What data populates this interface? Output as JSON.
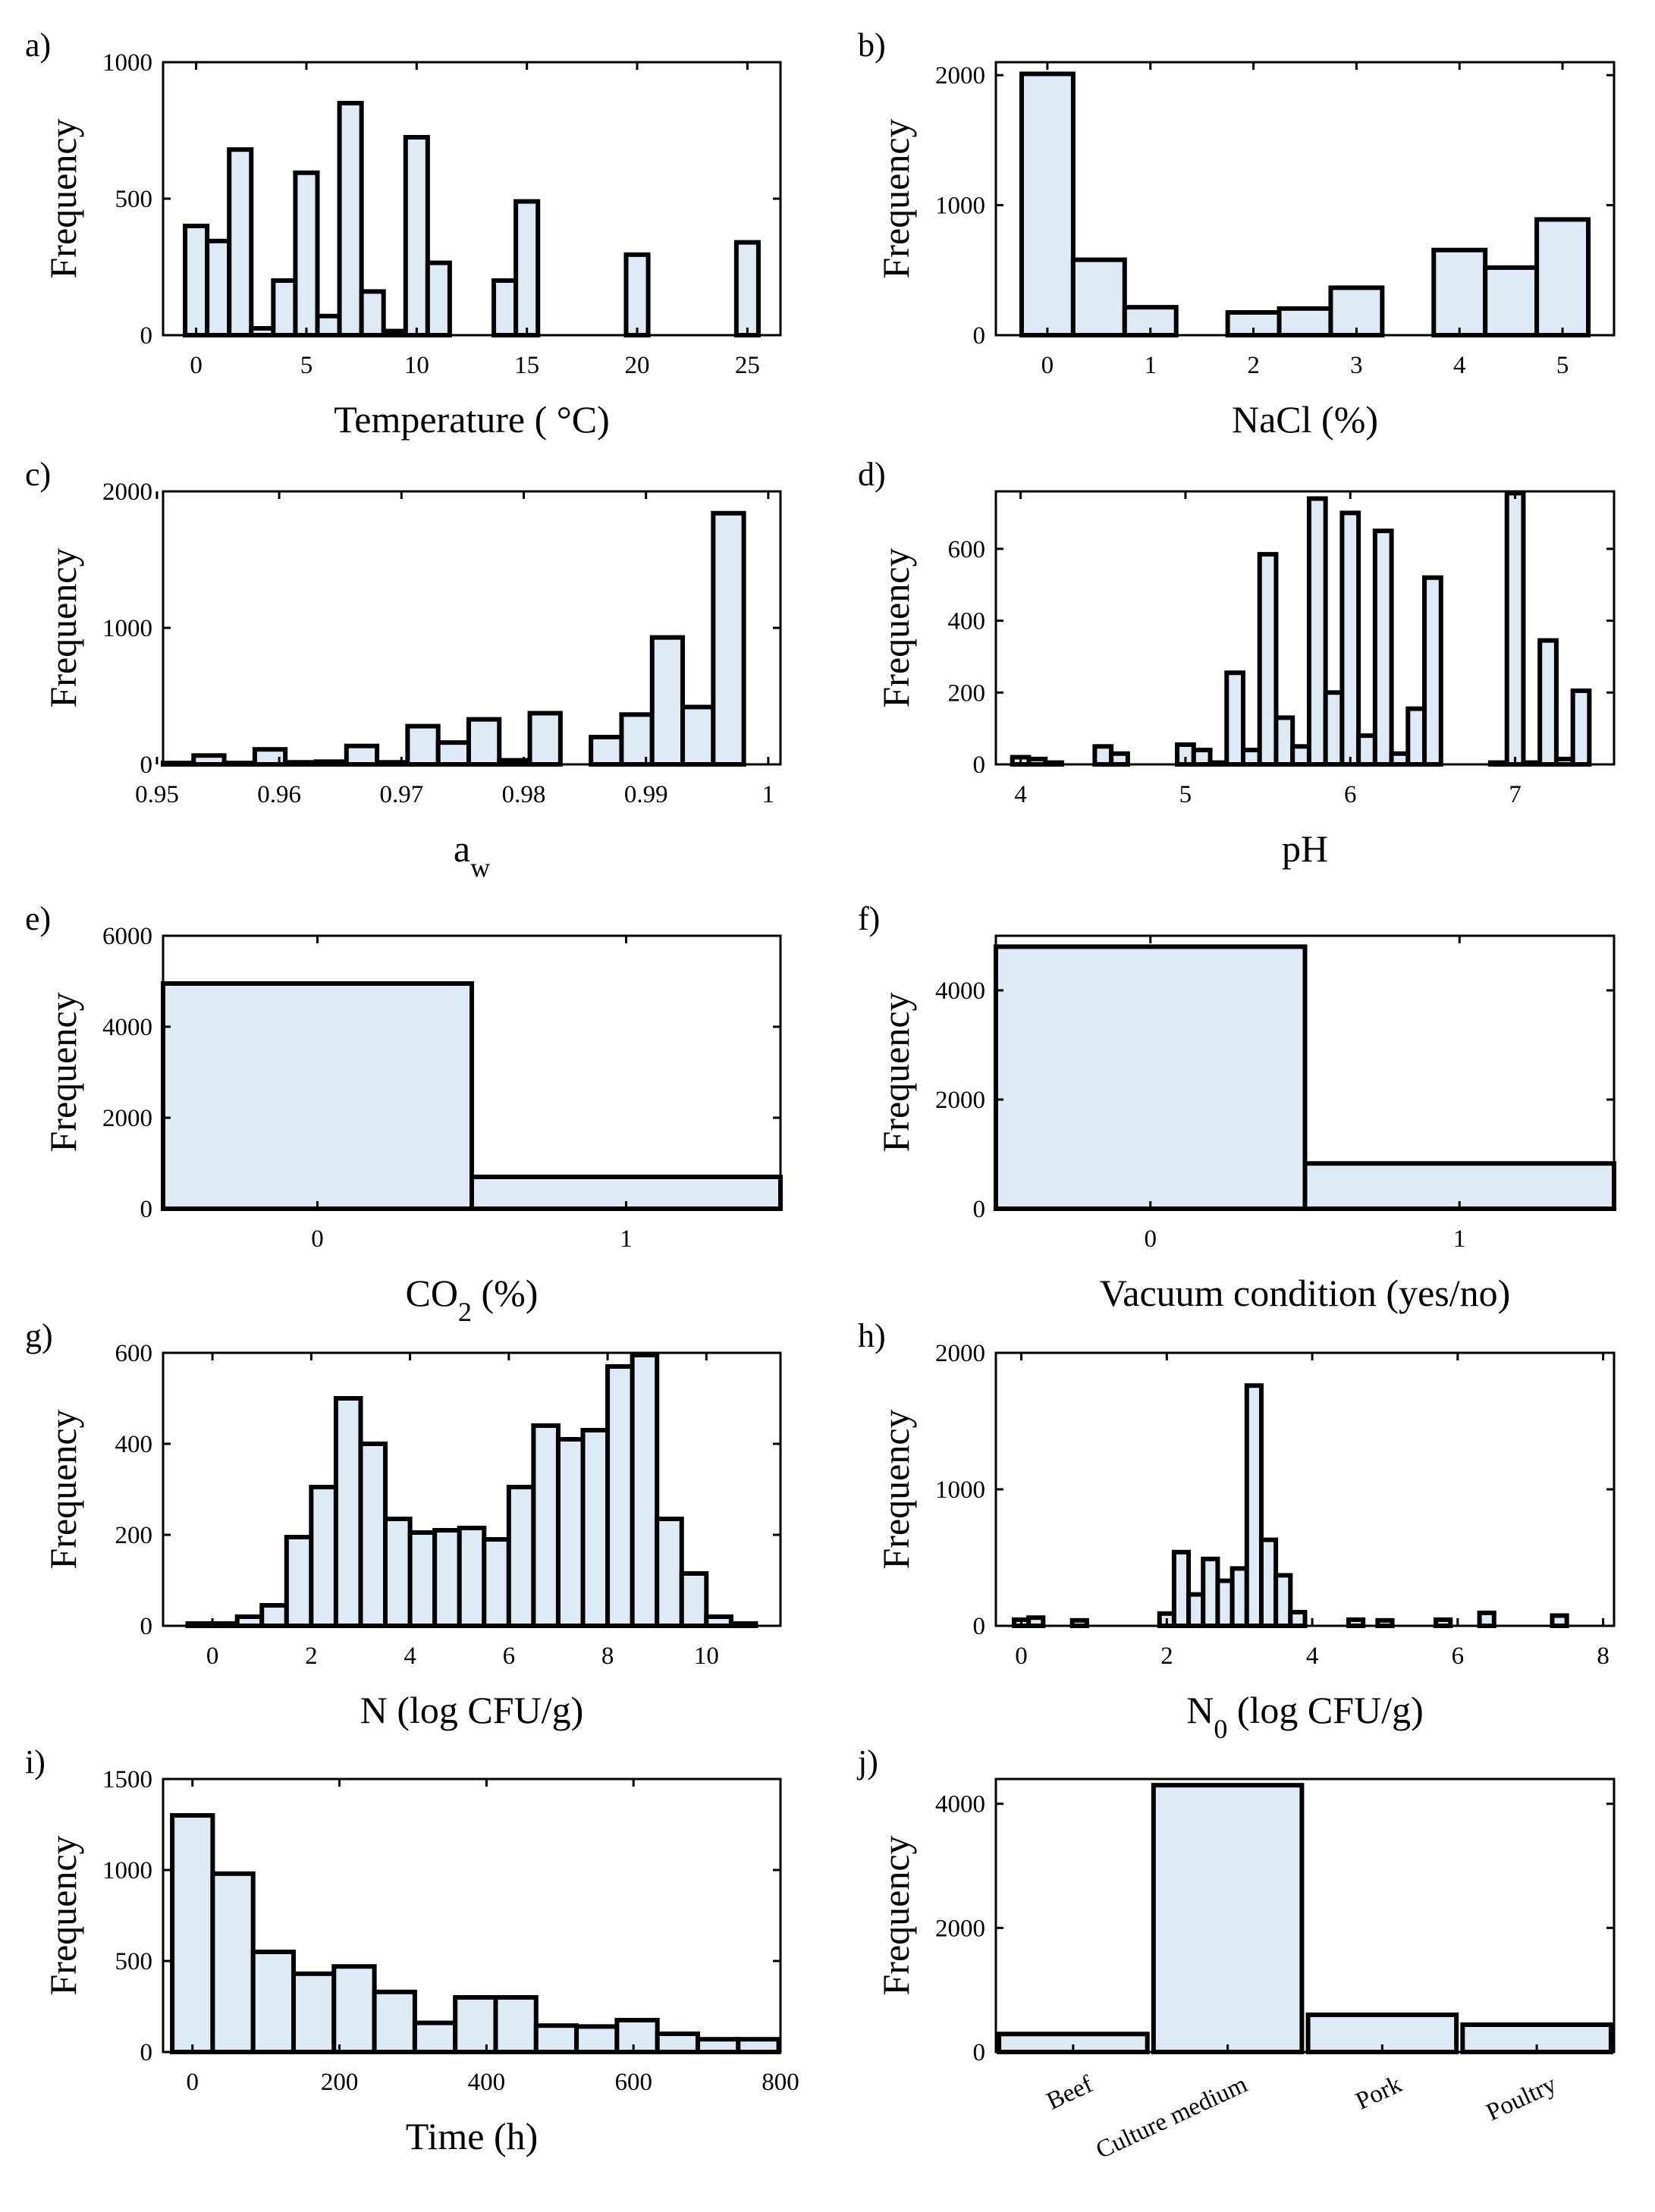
{
  "chart_data": [
    {
      "id": "a",
      "type": "bar",
      "panel_label": "a)",
      "ylabel": "Frequency",
      "xlabel": "Temperature ( °C)",
      "xlim": [
        -1.5,
        26.5
      ],
      "ylim": [
        0,
        1000
      ],
      "xticks": [
        0,
        5,
        10,
        15,
        20,
        25
      ],
      "yticks": [
        0,
        500,
        1000
      ],
      "binwidth": 1,
      "x": [
        0,
        1,
        2,
        3,
        4,
        5,
        6,
        7,
        8,
        9,
        10,
        11,
        14,
        15,
        20,
        25
      ],
      "values": [
        400,
        345,
        680,
        25,
        200,
        595,
        70,
        850,
        160,
        15,
        725,
        265,
        200,
        490,
        295,
        340
      ]
    },
    {
      "id": "b",
      "type": "bar",
      "panel_label": "b)",
      "ylabel": "Frequency",
      "xlabel": "NaCl (%)",
      "xlim": [
        -0.5,
        5.5
      ],
      "ylim": [
        0,
        2100
      ],
      "xticks": [
        0,
        1,
        2,
        3,
        4,
        5
      ],
      "yticks": [
        0,
        1000,
        2000
      ],
      "binwidth": 0.5,
      "x": [
        0,
        0.5,
        1,
        1.5,
        2,
        2.5,
        3,
        3.5,
        4,
        4.5,
        5
      ],
      "values": [
        2010,
        580,
        215,
        0,
        175,
        205,
        365,
        0,
        655,
        520,
        890
      ]
    },
    {
      "id": "c",
      "type": "bar",
      "panel_label": "c)",
      "ylabel": "Frequency",
      "xlabel": "a",
      "xlabel_sub": "w",
      "xlim": [
        0.9505,
        1.001
      ],
      "ylim": [
        0,
        2000
      ],
      "xticks": [
        0.95,
        0.96,
        0.97,
        0.98,
        0.99,
        1
      ],
      "yticks": [
        0,
        1000,
        2000
      ],
      "xtick_labels": [
        "0.95",
        "0.96",
        "0.97",
        "0.98",
        "0.99",
        "1"
      ],
      "binwidth": 0.0025,
      "x": [
        0.95175,
        0.95425,
        0.95675,
        0.95925,
        0.96175,
        0.96425,
        0.96675,
        0.96925,
        0.97175,
        0.97425,
        0.97675,
        0.97925,
        0.98175,
        0.98425,
        0.98675,
        0.98925,
        0.99175,
        0.99425,
        0.99675
      ],
      "values": [
        10,
        65,
        10,
        110,
        15,
        20,
        135,
        15,
        280,
        160,
        330,
        30,
        375,
        0,
        200,
        365,
        930,
        420,
        1840
      ]
    },
    {
      "id": "d",
      "type": "bar",
      "panel_label": "d)",
      "ylabel": "Frequency",
      "xlabel": "pH",
      "xlim": [
        3.85,
        7.6
      ],
      "ylim": [
        0,
        760
      ],
      "xticks": [
        4,
        5,
        6,
        7
      ],
      "yticks": [
        0,
        200,
        400,
        600
      ],
      "binwidth": 0.1,
      "x": [
        4.0,
        4.1,
        4.2,
        4.5,
        4.6,
        5.0,
        5.1,
        5.2,
        5.3,
        5.4,
        5.5,
        5.6,
        5.7,
        5.8,
        5.9,
        6.0,
        6.1,
        6.2,
        6.3,
        6.4,
        6.5,
        6.9,
        7.0,
        7.1,
        7.2,
        7.3,
        7.4,
        7.5
      ],
      "values": [
        20,
        15,
        5,
        50,
        30,
        55,
        40,
        5,
        255,
        40,
        585,
        130,
        50,
        740,
        200,
        700,
        80,
        650,
        30,
        155,
        520,
        5,
        755,
        5,
        345,
        15,
        205,
        0
      ]
    },
    {
      "id": "e",
      "type": "bar",
      "panel_label": "e)",
      "ylabel": "Frequency",
      "xlabel": "CO",
      "xlabel_sub": "2",
      "xlabel_tail": " (%)",
      "xlim": [
        -0.5,
        1.5
      ],
      "ylim": [
        0,
        6000
      ],
      "xticks": [
        0,
        1
      ],
      "yticks": [
        0,
        2000,
        4000,
        6000
      ],
      "binwidth": 1,
      "x": [
        0,
        1
      ],
      "values": [
        4950,
        700
      ]
    },
    {
      "id": "f",
      "type": "bar",
      "panel_label": "f)",
      "ylabel": "Frequency",
      "xlabel": "Vacuum condition (yes/no)",
      "xlim": [
        -0.5,
        1.5
      ],
      "ylim": [
        0,
        5000
      ],
      "xticks": [
        0,
        1
      ],
      "yticks": [
        0,
        2000,
        4000
      ],
      "binwidth": 1,
      "x": [
        0,
        1
      ],
      "values": [
        4800,
        830
      ]
    },
    {
      "id": "g",
      "type": "bar",
      "panel_label": "g)",
      "ylabel": "Frequency",
      "xlabel": "N (log CFU/g)",
      "xlim": [
        -1.0,
        11.5
      ],
      "ylim": [
        0,
        600
      ],
      "xticks": [
        0,
        2,
        4,
        6,
        8,
        10
      ],
      "yticks": [
        0,
        200,
        400,
        600
      ],
      "binwidth": 0.5,
      "x": [
        -0.25,
        0.25,
        0.75,
        1.25,
        1.75,
        2.25,
        2.75,
        3.25,
        3.75,
        4.25,
        4.75,
        5.25,
        5.75,
        6.25,
        6.75,
        7.25,
        7.75,
        8.25,
        8.75,
        9.25,
        9.75,
        10.25,
        10.75
      ],
      "values": [
        5,
        5,
        20,
        45,
        195,
        305,
        500,
        400,
        235,
        205,
        210,
        215,
        190,
        305,
        440,
        410,
        430,
        570,
        595,
        235,
        115,
        20,
        5
      ]
    },
    {
      "id": "h",
      "type": "bar",
      "panel_label": "h)",
      "ylabel": "Frequency",
      "xlabel": "N",
      "xlabel_sub": "0",
      "xlabel_tail": " (log CFU/g)",
      "xlim": [
        -0.35,
        8.15
      ],
      "ylim": [
        0,
        2000
      ],
      "xticks": [
        0,
        2,
        4,
        6,
        8
      ],
      "yticks": [
        0,
        1000,
        2000
      ],
      "binwidth": 0.2,
      "x": [
        0.0,
        0.2,
        0.8,
        2.0,
        2.2,
        2.4,
        2.6,
        2.8,
        3.0,
        3.2,
        3.4,
        3.6,
        3.8,
        4.6,
        5.0,
        5.8,
        6.4,
        7.4
      ],
      "values": [
        45,
        60,
        40,
        90,
        540,
        230,
        490,
        330,
        420,
        1760,
        630,
        370,
        100,
        45,
        40,
        45,
        95,
        75
      ]
    },
    {
      "id": "i",
      "type": "bar",
      "panel_label": "i)",
      "ylabel": "Frequency",
      "xlabel": "Time (h)",
      "xlim": [
        -40,
        800
      ],
      "ylim": [
        0,
        1500
      ],
      "xticks": [
        0,
        200,
        400,
        600,
        800
      ],
      "yticks": [
        0,
        500,
        1000,
        1500
      ],
      "binwidth": 55,
      "x": [
        0,
        55,
        110,
        165,
        220,
        275,
        330,
        385,
        440,
        495,
        550,
        605,
        660,
        715,
        770
      ],
      "values": [
        1300,
        980,
        550,
        430,
        470,
        330,
        160,
        300,
        300,
        145,
        140,
        175,
        100,
        70,
        70
      ]
    },
    {
      "id": "j",
      "type": "bar",
      "panel_label": "j)",
      "ylabel": "Frequency",
      "xlabel": "",
      "xlim": [
        -0.5,
        3.5
      ],
      "ylim": [
        0,
        4400
      ],
      "yticks": [
        0,
        2000,
        4000
      ],
      "binwidth": 0.96,
      "x": [
        0,
        1,
        2,
        3
      ],
      "categories": [
        "Beef",
        "Culture medium",
        "Pork",
        "Poultry"
      ],
      "values": [
        290,
        4300,
        600,
        440
      ]
    }
  ]
}
